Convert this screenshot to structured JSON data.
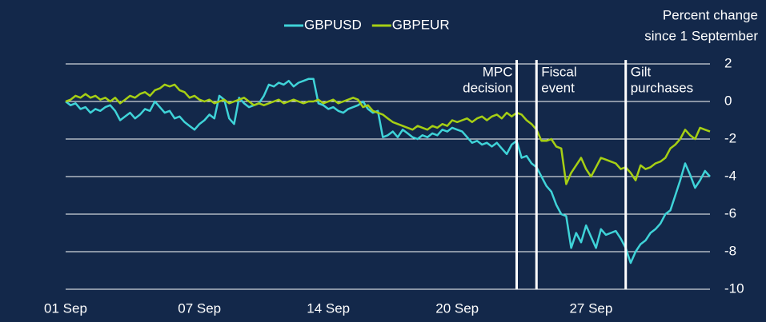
{
  "chart_data": {
    "type": "line",
    "y_label": [
      "Percent change",
      "since 1 September"
    ],
    "categories": [
      "01 Sep",
      null,
      null,
      null,
      null,
      null,
      null,
      null,
      null,
      null,
      null,
      null,
      null,
      null,
      null,
      null,
      null,
      null,
      null,
      null,
      null,
      null,
      null,
      null,
      null,
      null,
      null,
      "07 Sep",
      null,
      null,
      null,
      null,
      null,
      null,
      null,
      null,
      null,
      null,
      null,
      null,
      null,
      null,
      null,
      null,
      null,
      null,
      null,
      null,
      null,
      null,
      null,
      null,
      null,
      "14 Sep",
      null,
      null,
      null,
      null,
      null,
      null,
      null,
      null,
      null,
      null,
      null,
      null,
      null,
      null,
      null,
      null,
      null,
      null,
      null,
      null,
      null,
      null,
      null,
      null,
      null,
      "20 Sep",
      null,
      null,
      null,
      null,
      null,
      null,
      null,
      null,
      null,
      null,
      null,
      null,
      null,
      null,
      null,
      null,
      null,
      null,
      null,
      null,
      null,
      null,
      null,
      null,
      null,
      null,
      "27 Sep",
      null,
      null,
      null,
      null,
      null,
      null,
      null,
      null,
      null,
      null,
      null,
      null,
      null,
      null,
      null,
      null,
      null,
      null,
      null,
      null,
      null,
      null,
      null,
      null
    ],
    "series": [
      {
        "name": "GBPUSD",
        "color": "#3fd3d8",
        "values": [
          0,
          -0.2,
          -0.1,
          -0.4,
          -0.3,
          -0.6,
          -0.4,
          -0.5,
          -0.3,
          -0.2,
          -0.5,
          -1.0,
          -0.8,
          -0.6,
          -0.9,
          -0.7,
          -0.4,
          -0.5,
          0.0,
          -0.3,
          -0.6,
          -0.5,
          -0.9,
          -0.8,
          -1.1,
          -1.3,
          -1.5,
          -1.2,
          -1.0,
          -0.7,
          -0.9,
          0.3,
          0.1,
          -0.9,
          -1.2,
          0.2,
          -0.1,
          -0.3,
          -0.2,
          -0.1,
          0.3,
          0.9,
          0.8,
          1.0,
          0.9,
          1.1,
          0.8,
          1.0,
          1.1,
          1.2,
          1.2,
          -0.1,
          -0.2,
          -0.4,
          -0.3,
          -0.5,
          -0.6,
          -0.4,
          -0.3,
          -0.2,
          0.0,
          -0.4,
          -0.6,
          -0.5,
          -1.9,
          -1.8,
          -1.6,
          -1.9,
          -1.5,
          -1.7,
          -1.9,
          -2.0,
          -1.8,
          -1.9,
          -1.7,
          -1.8,
          -1.5,
          -1.6,
          -1.4,
          -1.5,
          -1.6,
          -1.9,
          -2.2,
          -2.1,
          -2.3,
          -2.2,
          -2.4,
          -2.2,
          -2.5,
          -2.8,
          -2.3,
          -2.1,
          -3.0,
          -2.9,
          -3.3,
          -3.5,
          -4.0,
          -4.5,
          -4.8,
          -5.5,
          -6.0,
          -6.1,
          -7.8,
          -7.0,
          -7.5,
          -6.6,
          -7.2,
          -7.8,
          -6.8,
          -7.1,
          -7.0,
          -6.9,
          -7.3,
          -7.8,
          -8.6,
          -8.0,
          -7.6,
          -7.4,
          -7.0,
          -6.8,
          -6.5,
          -6.0,
          -5.8,
          -5.0,
          -4.2,
          -3.3,
          -3.9,
          -4.6,
          -4.2,
          -3.7,
          -4.0
        ]
      },
      {
        "name": "GBPEUR",
        "color": "#a6cf14",
        "values": [
          0,
          0.1,
          0.3,
          0.2,
          0.4,
          0.2,
          0.3,
          0.1,
          0.2,
          0.0,
          0.2,
          -0.1,
          0.1,
          0.3,
          0.2,
          0.4,
          0.5,
          0.3,
          0.6,
          0.7,
          0.9,
          0.8,
          0.9,
          0.6,
          0.5,
          0.2,
          0.3,
          0.1,
          0.0,
          0.1,
          -0.1,
          0.0,
          0.1,
          -0.1,
          0.0,
          0.1,
          0.2,
          0.0,
          -0.2,
          -0.1,
          -0.2,
          -0.1,
          0.0,
          0.1,
          -0.1,
          0.0,
          0.1,
          0.0,
          -0.1,
          0.0,
          0.0,
          0.1,
          -0.1,
          0.0,
          0.1,
          -0.1,
          0.0,
          0.1,
          0.2,
          0.1,
          -0.3,
          -0.2,
          -0.5,
          -0.6,
          -0.7,
          -0.9,
          -1.1,
          -1.2,
          -1.3,
          -1.4,
          -1.5,
          -1.3,
          -1.4,
          -1.5,
          -1.3,
          -1.4,
          -1.2,
          -1.3,
          -1.0,
          -1.1,
          -1.0,
          -0.9,
          -1.1,
          -0.9,
          -0.8,
          -1.0,
          -0.8,
          -0.7,
          -0.9,
          -0.6,
          -0.8,
          -0.6,
          -0.7,
          -1.0,
          -1.2,
          -1.5,
          -2.1,
          -2.1,
          -2.0,
          -2.4,
          -2.5,
          -4.4,
          -3.8,
          -3.4,
          -3.0,
          -3.6,
          -4.0,
          -3.5,
          -3.0,
          -3.1,
          -3.2,
          -3.3,
          -3.6,
          -3.5,
          -3.8,
          -4.2,
          -3.4,
          -3.6,
          -3.5,
          -3.3,
          -3.2,
          -3.0,
          -2.5,
          -2.3,
          -2.0,
          -1.5,
          -1.8,
          -2.0,
          -1.4,
          -1.5,
          -1.6
        ]
      }
    ],
    "annotations": [
      {
        "x": 91,
        "label": [
          "MPC",
          "decision"
        ],
        "side": "left"
      },
      {
        "x": 95,
        "label": [
          "Fiscal",
          "event"
        ],
        "side": "right"
      },
      {
        "x": 113,
        "label": [
          "Gilt",
          "purchases"
        ],
        "side": "right"
      }
    ],
    "ylim": [
      -10,
      2
    ],
    "yticks": [
      2,
      0,
      -2,
      -4,
      -6,
      -8,
      -10
    ],
    "y_axis_side": "right",
    "grid": true,
    "background": "#13284a",
    "legend": "top"
  }
}
